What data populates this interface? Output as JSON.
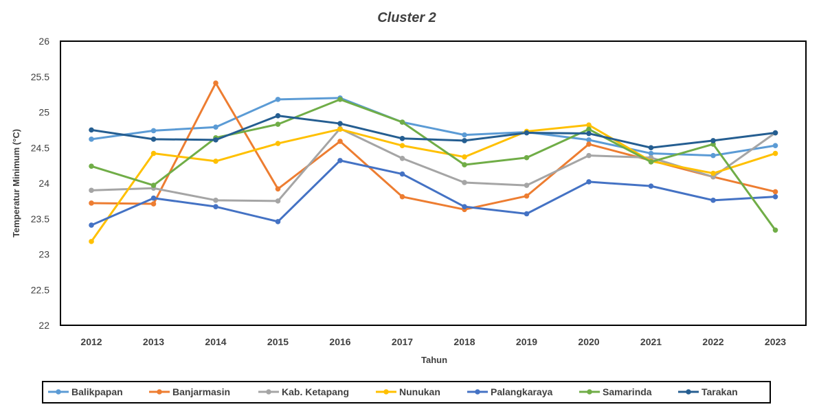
{
  "chart_data": {
    "type": "line",
    "title": "Cluster 2",
    "xlabel": "Tahun",
    "ylabel": "Temperatur Minimum (°C)",
    "ylim": [
      22,
      26
    ],
    "yticks": [
      "22",
      "22.5",
      "23",
      "23.5",
      "24",
      "24.5",
      "25",
      "25.5",
      "26"
    ],
    "grid": false,
    "legend_position": "bottom",
    "categories": [
      "2012",
      "2013",
      "2014",
      "2015",
      "2016",
      "2017",
      "2018",
      "2019",
      "2020",
      "2021",
      "2022",
      "2023"
    ],
    "series": [
      {
        "name": "Balikpapan",
        "color": "#5B9BD5",
        "values": [
          24.62,
          24.74,
          24.79,
          25.18,
          25.2,
          24.86,
          24.68,
          24.72,
          24.61,
          24.42,
          24.39,
          24.53
        ]
      },
      {
        "name": "Banjarmasin",
        "color": "#ED7D31",
        "values": [
          23.72,
          23.71,
          25.41,
          23.92,
          24.59,
          23.81,
          23.63,
          23.82,
          24.55,
          24.32,
          24.09,
          23.88
        ]
      },
      {
        "name": "Kab. Ketapang",
        "color": "#A5A5A5",
        "values": [
          23.9,
          23.93,
          23.76,
          23.75,
          24.77,
          24.35,
          24.01,
          23.97,
          24.39,
          24.36,
          24.09,
          24.71
        ]
      },
      {
        "name": "Nunukan",
        "color": "#FFC000",
        "values": [
          23.18,
          24.42,
          24.31,
          24.56,
          24.76,
          24.53,
          24.37,
          24.73,
          24.82,
          24.31,
          24.14,
          24.42
        ]
      },
      {
        "name": "Palangkaraya",
        "color": "#4472C4",
        "values": [
          23.41,
          23.79,
          23.67,
          23.46,
          24.32,
          24.13,
          23.67,
          23.57,
          24.02,
          23.96,
          23.76,
          23.81
        ]
      },
      {
        "name": "Samarinda",
        "color": "#70AD47",
        "values": [
          24.24,
          23.97,
          24.64,
          24.83,
          25.18,
          24.86,
          24.26,
          24.36,
          24.76,
          24.3,
          24.55,
          23.34
        ]
      },
      {
        "name": "Tarakan",
        "color": "#255E91",
        "values": [
          24.75,
          24.62,
          24.61,
          24.95,
          24.84,
          24.63,
          24.6,
          24.71,
          24.7,
          24.5,
          24.6,
          24.71
        ]
      }
    ]
  }
}
